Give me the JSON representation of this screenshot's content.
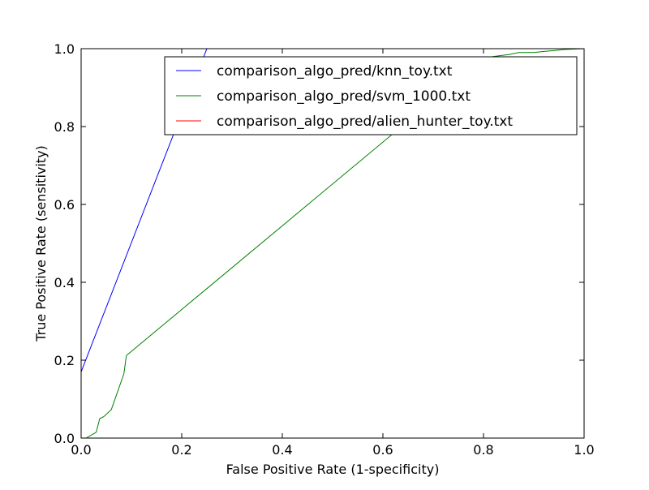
{
  "chart_data": {
    "type": "line",
    "title": "",
    "xlabel": "False Positive Rate (1-specificity)",
    "ylabel": "True Positive Rate (sensitivity)",
    "xlim": [
      0.0,
      1.0
    ],
    "ylim": [
      0.0,
      1.0
    ],
    "xticks": [
      "0.0",
      "0.2",
      "0.4",
      "0.6",
      "0.8",
      "1.0"
    ],
    "yticks": [
      "0.0",
      "0.2",
      "0.4",
      "0.6",
      "0.8",
      "1.0"
    ],
    "grid": false,
    "legend_position": "top-right",
    "series": [
      {
        "name": "comparison_algo_pred/knn_toy.txt",
        "color": "#0000ff",
        "x": [
          0.0,
          0.25,
          0.26
        ],
        "y": [
          0.17,
          1.0,
          1.0
        ]
      },
      {
        "name": "comparison_algo_pred/svm_1000.txt",
        "color": "#008000",
        "x": [
          0.0,
          0.01,
          0.03,
          0.037,
          0.045,
          0.06,
          0.085,
          0.09,
          0.8,
          0.82,
          0.85,
          0.87,
          0.9,
          0.92,
          0.94,
          0.96,
          0.98,
          1.0
        ],
        "y": [
          0.0,
          0.0,
          0.015,
          0.05,
          0.055,
          0.073,
          0.165,
          0.212,
          0.975,
          0.98,
          0.985,
          0.99,
          0.99,
          0.993,
          0.995,
          0.998,
          0.999,
          1.0
        ]
      },
      {
        "name": "comparison_algo_pred/alien_hunter_toy.txt",
        "color": "#ff0000",
        "x": [],
        "y": []
      }
    ]
  }
}
